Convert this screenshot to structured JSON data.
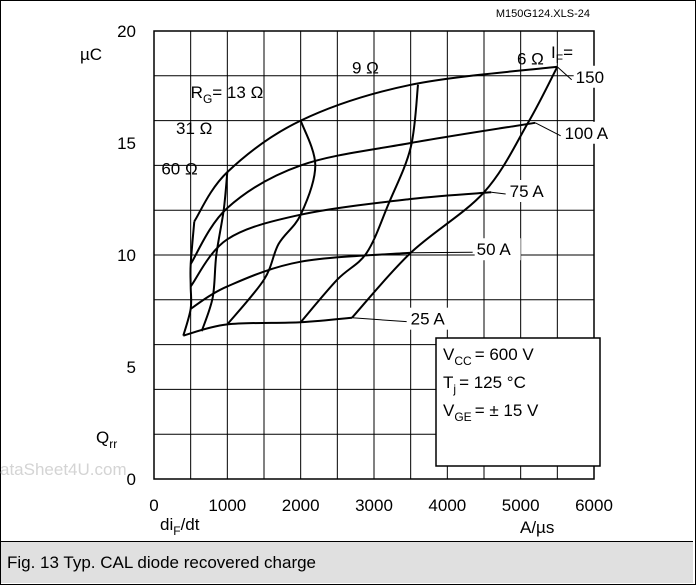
{
  "chart_data": {
    "type": "line",
    "file_label": "M150G124.XLS-24",
    "ylabel_unit": "µC",
    "ylabel_symbol": "Q",
    "ylabel_sub": "rr",
    "xlabel_symbol": "di",
    "xlabel_sub": "F",
    "xlabel_suffix": "/dt",
    "xlabel_unit": "A/µs",
    "xlim": [
      0,
      6000
    ],
    "ylim": [
      0,
      20
    ],
    "x_ticks": [
      "0",
      "1000",
      "2000",
      "3000",
      "4000",
      "5000",
      "6000"
    ],
    "y_ticks": [
      "0",
      "5",
      "10",
      "15",
      "20"
    ],
    "legend_header": "I",
    "legend_header_sub": "F",
    "legend_header_suffix": "=",
    "series": [
      {
        "name": "150",
        "points": [
          [
            550,
            11.5
          ],
          [
            1000,
            13.7
          ],
          [
            2000,
            16.0
          ],
          [
            3500,
            17.6
          ],
          [
            5500,
            18.4
          ]
        ]
      },
      {
        "name": "100 A",
        "points": [
          [
            500,
            9.6
          ],
          [
            1000,
            12.1
          ],
          [
            2000,
            14.0
          ],
          [
            3500,
            15.0
          ],
          [
            5200,
            15.9
          ]
        ]
      },
      {
        "name": "75 A",
        "points": [
          [
            500,
            8.6
          ],
          [
            1000,
            10.7
          ],
          [
            2000,
            11.8
          ],
          [
            3500,
            12.5
          ],
          [
            4600,
            12.8
          ]
        ]
      },
      {
        "name": "50 A",
        "points": [
          [
            500,
            7.6
          ],
          [
            1000,
            8.6
          ],
          [
            2000,
            9.7
          ],
          [
            3500,
            10.1
          ]
        ]
      },
      {
        "name": "25 A",
        "points": [
          [
            400,
            6.4
          ],
          [
            1000,
            6.9
          ],
          [
            2000,
            7.0
          ],
          [
            2700,
            7.2
          ]
        ]
      }
    ],
    "resistance_curves": [
      {
        "name": "60 Ω",
        "points": [
          [
            400,
            6.4
          ],
          [
            500,
            7.6
          ],
          [
            500,
            8.6
          ],
          [
            500,
            9.6
          ],
          [
            550,
            11.5
          ]
        ]
      },
      {
        "name": "31 Ω",
        "points": [
          [
            650,
            6.6
          ],
          [
            800,
            8.1
          ],
          [
            850,
            10.0
          ],
          [
            950,
            12.0
          ],
          [
            1000,
            13.7
          ]
        ]
      },
      {
        "name": "R",
        "name_sub": "G",
        "name_suffix": "= 13 Ω",
        "points": [
          [
            1000,
            6.9
          ],
          [
            1500,
            8.9
          ],
          [
            1700,
            10.5
          ],
          [
            2000,
            11.8
          ],
          [
            2200,
            14.0
          ],
          [
            2000,
            16.0
          ]
        ]
      },
      {
        "name": "9 Ω",
        "points": [
          [
            2000,
            7.0
          ],
          [
            2500,
            8.9
          ],
          [
            2900,
            10.1
          ],
          [
            3200,
            12.3
          ],
          [
            3500,
            14.8
          ],
          [
            3600,
            17.6
          ]
        ]
      },
      {
        "name": "6 Ω",
        "points": [
          [
            2700,
            7.2
          ],
          [
            3500,
            10.1
          ],
          [
            4500,
            12.8
          ],
          [
            5100,
            15.9
          ],
          [
            5500,
            18.4
          ]
        ]
      }
    ],
    "annotation_lines": [
      "V",
      "CC",
      "= 600 V",
      "T",
      "j",
      "= 125 °C",
      "V",
      "GE",
      "= ± 15 V"
    ]
  },
  "caption": "Fig. 13 Typ. CAL diode recovered charge",
  "watermark": "ataSheet4U.com"
}
